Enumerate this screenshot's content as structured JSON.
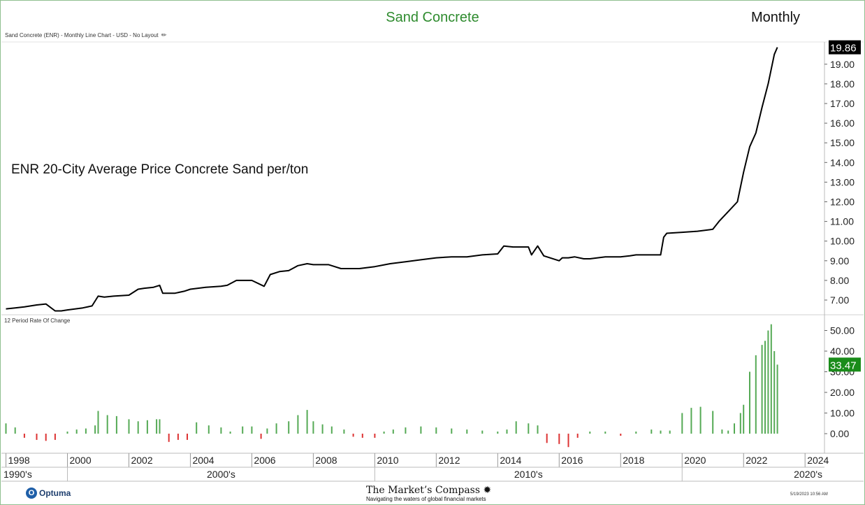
{
  "header": {
    "title": "Sand Concrete",
    "period": "Monthly",
    "subtitle": "Sand Concrete (ENR) - Monthly Line Chart - USD - No Layout"
  },
  "annotation": "ENR 20-City Average Price Concrete Sand per/ton",
  "footer": {
    "logo_text": "Optuma",
    "brand_name": "The Market’s Compass",
    "brand_tagline": "Navigating the waters of global financial markets",
    "timestamp": "5/19/2023 10:56 AM"
  },
  "colors": {
    "title": "#2e8b2e",
    "price_line": "#000000",
    "roc_positive": "#55aa55",
    "roc_negative": "#dd3333",
    "last_price_badge": "#000000",
    "last_roc_badge": "#1a8c1a"
  },
  "chart_data": [
    {
      "type": "line",
      "title": "Sand Concrete (ENR) - Monthly Line Chart - USD - No Layout",
      "last_value": "19.86",
      "y_ticks": [
        "7.00",
        "8.00",
        "9.00",
        "10.00",
        "11.00",
        "12.00",
        "13.00",
        "14.00",
        "15.00",
        "16.00",
        "17.00",
        "18.00",
        "19.00"
      ],
      "ylim": [
        6.4,
        20.3
      ],
      "x": [
        1998.0,
        1998.3,
        1998.6,
        1999.0,
        1999.3,
        1999.6,
        1999.8,
        2000.0,
        2000.5,
        2000.8,
        2001.0,
        2001.2,
        2001.5,
        2002.0,
        2002.3,
        2002.5,
        2002.8,
        2003.0,
        2003.1,
        2003.5,
        2003.8,
        2004.0,
        2004.5,
        2005.0,
        2005.2,
        2005.5,
        2006.0,
        2006.4,
        2006.6,
        2006.9,
        2007.2,
        2007.5,
        2007.8,
        2008.0,
        2008.5,
        2008.9,
        2009.0,
        2009.5,
        2010.0,
        2010.5,
        2011.0,
        2011.5,
        2012.0,
        2012.5,
        2013.0,
        2013.5,
        2014.0,
        2014.2,
        2014.5,
        2015.0,
        2015.1,
        2015.3,
        2015.5,
        2015.6,
        2016.0,
        2016.1,
        2016.3,
        2016.5,
        2016.8,
        2017.0,
        2017.5,
        2018.0,
        2018.3,
        2018.5,
        2019.0,
        2019.3,
        2019.4,
        2019.5,
        2020.0,
        2020.5,
        2021.0,
        2021.2,
        2021.5,
        2021.8,
        2022.0,
        2022.2,
        2022.4,
        2022.6,
        2022.8,
        2023.0,
        2023.1
      ],
      "y": [
        6.55,
        6.6,
        6.65,
        6.75,
        6.8,
        6.45,
        6.45,
        6.5,
        6.6,
        6.7,
        7.2,
        7.15,
        7.2,
        7.25,
        7.55,
        7.6,
        7.65,
        7.75,
        7.35,
        7.35,
        7.45,
        7.55,
        7.65,
        7.7,
        7.75,
        8.0,
        8.0,
        7.7,
        8.3,
        8.45,
        8.5,
        8.75,
        8.85,
        8.8,
        8.8,
        8.6,
        8.6,
        8.6,
        8.7,
        8.85,
        8.95,
        9.05,
        9.15,
        9.2,
        9.2,
        9.3,
        9.35,
        9.75,
        9.7,
        9.7,
        9.3,
        9.75,
        9.25,
        9.2,
        9.0,
        9.15,
        9.15,
        9.2,
        9.1,
        9.1,
        9.2,
        9.2,
        9.25,
        9.3,
        9.3,
        9.3,
        10.2,
        10.4,
        10.45,
        10.5,
        10.6,
        11.0,
        11.5,
        12.0,
        13.5,
        14.8,
        15.5,
        16.8,
        18.0,
        19.5,
        19.86
      ]
    },
    {
      "type": "bar",
      "title": "12 Period Rate Of Change",
      "last_value": "33.47",
      "y_ticks": [
        "0.00",
        "10.00",
        "20.00",
        "30.00",
        "40.00",
        "50.00"
      ],
      "ylim": [
        -8,
        57
      ],
      "x": [
        1998.0,
        1998.3,
        1998.6,
        1999.0,
        1999.3,
        1999.6,
        2000.0,
        2000.3,
        2000.6,
        2000.9,
        2001.0,
        2001.3,
        2001.6,
        2002.0,
        2002.3,
        2002.6,
        2002.9,
        2003.0,
        2003.3,
        2003.6,
        2003.9,
        2004.2,
        2004.6,
        2005.0,
        2005.3,
        2005.7,
        2006.0,
        2006.3,
        2006.5,
        2006.8,
        2007.2,
        2007.5,
        2007.8,
        2008.0,
        2008.3,
        2008.6,
        2009.0,
        2009.3,
        2009.6,
        2010.0,
        2010.3,
        2010.6,
        2011.0,
        2011.5,
        2012.0,
        2012.5,
        2013.0,
        2013.5,
        2014.0,
        2014.3,
        2014.6,
        2015.0,
        2015.3,
        2015.6,
        2016.0,
        2016.3,
        2016.6,
        2017.0,
        2017.5,
        2018.0,
        2018.5,
        2019.0,
        2019.3,
        2019.6,
        2020.0,
        2020.3,
        2020.6,
        2021.0,
        2021.3,
        2021.5,
        2021.7,
        2021.9,
        2022.0,
        2022.2,
        2022.4,
        2022.6,
        2022.7,
        2022.8,
        2022.9,
        2023.0,
        2023.1
      ],
      "y": [
        5.0,
        3.0,
        -2.0,
        -3.0,
        -3.5,
        -3.0,
        1.0,
        2.0,
        2.5,
        4.0,
        11.0,
        9.0,
        8.5,
        7.0,
        6.0,
        6.5,
        7.0,
        7.0,
        -4.0,
        -3.0,
        -3.0,
        5.5,
        4.0,
        3.0,
        1.0,
        3.5,
        3.5,
        -2.5,
        2.5,
        5.0,
        6.0,
        9.0,
        11.5,
        6.0,
        4.5,
        3.5,
        2.0,
        -1.5,
        -2.0,
        -2.0,
        1.0,
        2.0,
        3.0,
        3.5,
        3.0,
        2.5,
        2.0,
        1.5,
        1.0,
        2.0,
        6.0,
        5.0,
        4.0,
        -4.5,
        -5.0,
        -6.5,
        -2.0,
        1.0,
        1.0,
        -1.0,
        1.0,
        2.0,
        1.5,
        1.5,
        10.0,
        12.5,
        13.0,
        11.0,
        2.0,
        1.5,
        5.0,
        10.0,
        14.0,
        30.0,
        38.0,
        43.0,
        45.0,
        50.0,
        53.0,
        40.0,
        33.47
      ]
    }
  ],
  "x_axis": {
    "years": [
      "1998",
      "2000",
      "2002",
      "2004",
      "2006",
      "2008",
      "2010",
      "2012",
      "2014",
      "2016",
      "2018",
      "2020",
      "2022",
      "2024"
    ],
    "decades": [
      "1990's",
      "2000's",
      "2010's",
      "2020's"
    ]
  }
}
